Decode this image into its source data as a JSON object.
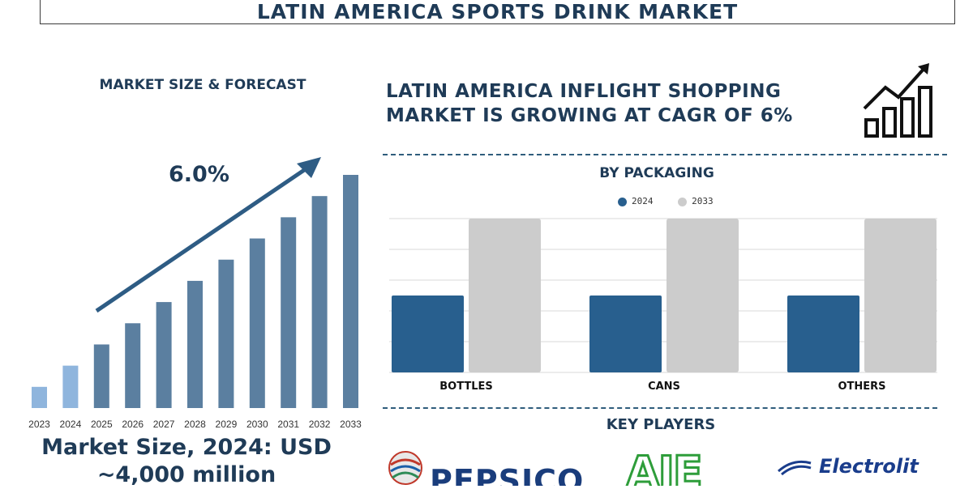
{
  "title": "LATIN AMERICA SPORTS DRINK MARKET",
  "left_panel": {
    "heading": "MARKET SIZE & FORECAST",
    "cagr_label": "6.0%",
    "market_size_line1": "Market Size, 2024: USD",
    "market_size_line2": "~4,000 million"
  },
  "right_panel": {
    "headline_line1": "LATIN AMERICA INFLIGHT SHOPPING",
    "headline_line2": "MARKET IS GROWING AT CAGR OF 6%",
    "packaging_heading": "BY PACKAGING",
    "key_players_heading": "KEY PLAYERS",
    "players": [
      "PEPSICO",
      "AJE",
      "Electrolit"
    ]
  },
  "colors": {
    "dark_blue": "#1f3b57",
    "forecast_bar": "#5b7fa0",
    "history_bar": "#8fb5dd",
    "series_2024": "#285f8e",
    "series_2033": "#cccccc",
    "arrow": "#2e5c84"
  },
  "chart_data": [
    {
      "type": "bar",
      "categories": [
        "2023",
        "2024",
        "2025",
        "2026",
        "2027",
        "2028",
        "2029",
        "2030",
        "2031",
        "2032",
        "2033"
      ],
      "values": [
        1.0,
        2.0,
        3.0,
        4.0,
        5.0,
        6.0,
        7.0,
        8.0,
        9.0,
        10.0,
        11.0
      ],
      "ylim": [
        0,
        11
      ],
      "highlight": [
        "2023",
        "2024"
      ],
      "annotation": "6.0%"
    },
    {
      "type": "bar",
      "categories": [
        "BOTTLES",
        "CANS",
        "OTHERS"
      ],
      "series": [
        {
          "name": "2024",
          "values": [
            50,
            50,
            50
          ]
        },
        {
          "name": "2033",
          "values": [
            100,
            100,
            100
          ]
        }
      ],
      "ylim": [
        0,
        100
      ],
      "grid": true,
      "legend": "top-center"
    }
  ]
}
